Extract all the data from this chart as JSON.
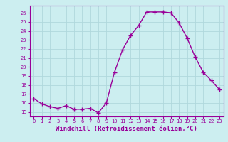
{
  "x": [
    0,
    1,
    2,
    3,
    4,
    5,
    6,
    7,
    8,
    9,
    10,
    11,
    12,
    13,
    14,
    15,
    16,
    17,
    18,
    19,
    20,
    21,
    22,
    23
  ],
  "y": [
    16.5,
    15.9,
    15.6,
    15.4,
    15.7,
    15.3,
    15.3,
    15.4,
    14.9,
    16.0,
    19.4,
    21.9,
    23.5,
    24.6,
    26.1,
    26.1,
    26.1,
    26.0,
    24.9,
    23.2,
    21.1,
    19.4,
    18.5,
    17.5
  ],
  "line_color": "#990099",
  "marker": "+",
  "markersize": 4,
  "linewidth": 1.0,
  "markeredgewidth": 1.0,
  "xlabel": "Windchill (Refroidissement éolien,°C)",
  "xlabel_fontsize": 6.5,
  "xlabel_color": "#990099",
  "yticks": [
    15,
    16,
    17,
    18,
    19,
    20,
    21,
    22,
    23,
    24,
    25,
    26
  ],
  "ylim": [
    14.5,
    26.8
  ],
  "xlim": [
    -0.5,
    23.5
  ],
  "xticks": [
    0,
    1,
    2,
    3,
    4,
    5,
    6,
    7,
    8,
    9,
    10,
    11,
    12,
    13,
    14,
    15,
    16,
    17,
    18,
    19,
    20,
    21,
    22,
    23
  ],
  "bg_color": "#cceef0",
  "grid_color": "#b0d8dc",
  "tick_color": "#990099",
  "tick_fontsize": 5.0,
  "spine_color": "#990099"
}
